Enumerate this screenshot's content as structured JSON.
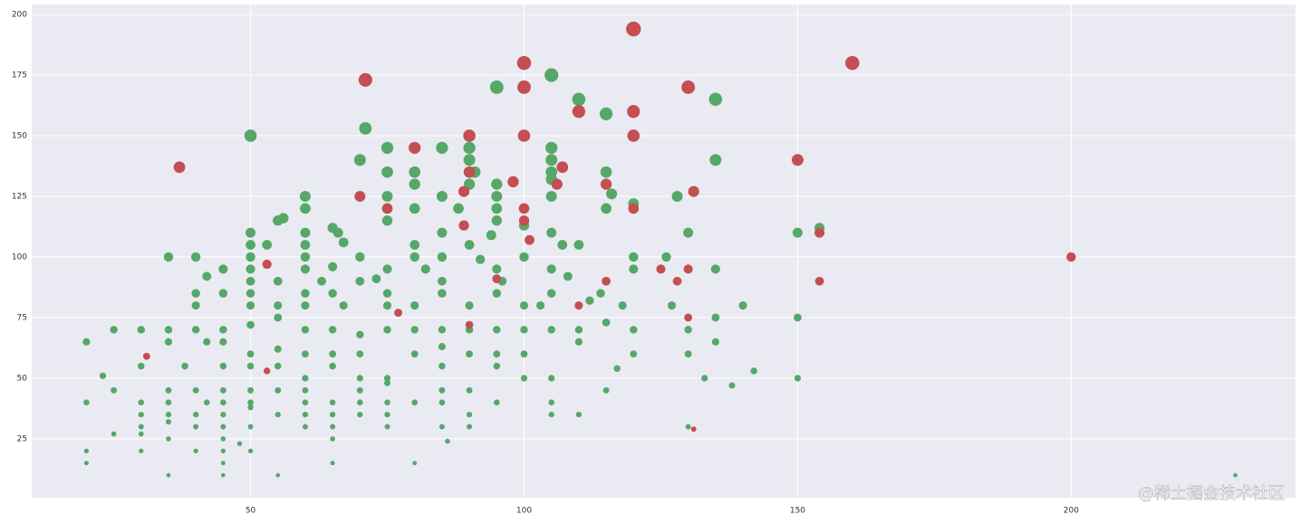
{
  "chart_data": {
    "type": "scatter",
    "grid": true,
    "xlim": [
      10,
      241
    ],
    "ylim": [
      0.7,
      204.1
    ],
    "xticks": [
      50,
      100,
      150,
      200
    ],
    "yticks": [
      25,
      50,
      75,
      100,
      125,
      150,
      175,
      200
    ],
    "watermark": "@稀土掘金技术社区",
    "series": [
      {
        "color": "#55a868",
        "x": [
          50,
          71,
          95,
          105,
          110,
          115,
          135,
          75,
          85,
          90,
          105,
          70,
          90,
          105,
          135,
          75,
          80,
          91,
          105,
          115,
          80,
          90,
          95,
          105,
          60,
          75,
          85,
          95,
          105,
          116,
          128,
          60,
          75,
          80,
          88,
          95,
          115,
          120,
          55,
          56,
          65,
          75,
          95,
          100,
          50,
          60,
          66,
          85,
          94,
          105,
          130,
          150,
          154,
          50,
          53,
          60,
          67,
          80,
          90,
          107,
          110,
          35,
          40,
          50,
          60,
          70,
          80,
          85,
          92,
          100,
          120,
          126,
          45,
          50,
          60,
          65,
          75,
          82,
          95,
          105,
          135,
          120,
          42,
          50,
          55,
          63,
          70,
          73,
          85,
          96,
          108,
          45,
          40,
          50,
          60,
          65,
          75,
          85,
          95,
          105,
          114,
          30,
          25,
          35,
          40,
          45,
          50,
          55,
          60,
          65,
          70,
          75,
          80,
          85,
          90,
          95,
          100,
          105,
          110,
          115,
          120,
          130,
          40,
          50,
          55,
          60,
          67,
          75,
          80,
          90,
          100,
          103,
          112,
          118,
          127,
          140,
          20,
          35,
          42,
          45,
          50,
          55,
          60,
          65,
          70,
          80,
          85,
          90,
          95,
          100,
          110,
          120,
          130,
          135,
          150,
          135,
          23,
          30,
          38,
          45,
          50,
          55,
          60,
          65,
          70,
          75,
          85,
          95,
          100,
          105,
          117,
          142,
          133,
          150,
          25,
          35,
          40,
          45,
          50,
          55,
          60,
          70,
          75,
          85,
          90,
          115,
          138,
          20,
          30,
          35,
          42,
          45,
          50,
          60,
          65,
          70,
          75,
          80,
          85,
          95,
          105,
          30,
          35,
          40,
          45,
          50,
          55,
          60,
          65,
          70,
          75,
          90,
          105,
          110,
          30,
          35,
          40,
          45,
          50,
          60,
          65,
          75,
          85,
          90,
          130,
          25,
          30,
          35,
          45,
          48,
          65,
          86,
          20,
          30,
          40,
          45,
          50,
          20,
          45,
          65,
          80,
          35,
          45,
          55,
          230
        ],
        "y": [
          150,
          153,
          170,
          175,
          165,
          159,
          165,
          145,
          145,
          145,
          145,
          140,
          140,
          140,
          140,
          135,
          135,
          135,
          135,
          135,
          130,
          130,
          130,
          132,
          125,
          125,
          125,
          125,
          125,
          126,
          125,
          120,
          120,
          120,
          120,
          120,
          120,
          122,
          115,
          116,
          112,
          115,
          115,
          113,
          110,
          110,
          110,
          110,
          109,
          110,
          110,
          110,
          112,
          105,
          105,
          105,
          106,
          105,
          105,
          105,
          105,
          100,
          100,
          100,
          100,
          100,
          100,
          100,
          99,
          100,
          100,
          100,
          95,
          95,
          95,
          96,
          95,
          95,
          95,
          95,
          95,
          95,
          92,
          90,
          90,
          90,
          90,
          91,
          90,
          90,
          92,
          85,
          85,
          85,
          85,
          85,
          85,
          85,
          85,
          85,
          85,
          70,
          70,
          70,
          70,
          70,
          72,
          75,
          70,
          70,
          68,
          70,
          70,
          70,
          70,
          70,
          70,
          70,
          70,
          73,
          70,
          70,
          80,
          80,
          80,
          80,
          80,
          80,
          80,
          80,
          80,
          80,
          82,
          80,
          80,
          80,
          65,
          65,
          65,
          65,
          60,
          62,
          60,
          60,
          60,
          60,
          63,
          60,
          60,
          60,
          65,
          60,
          60,
          65,
          75,
          75,
          51,
          55,
          55,
          55,
          55,
          55,
          50,
          55,
          50,
          50,
          55,
          55,
          50,
          50,
          54,
          53,
          50,
          50,
          45,
          45,
          45,
          45,
          45,
          45,
          45,
          45,
          48,
          45,
          45,
          45,
          47,
          40,
          40,
          40,
          40,
          40,
          40,
          40,
          40,
          40,
          40,
          40,
          40,
          40,
          40,
          35,
          35,
          35,
          35,
          38,
          35,
          35,
          35,
          35,
          35,
          35,
          35,
          35,
          30,
          32,
          30,
          30,
          30,
          30,
          30,
          30,
          30,
          30,
          30,
          27,
          27,
          25,
          25,
          23,
          25,
          24,
          20,
          20,
          20,
          20,
          20,
          15,
          15,
          15,
          15,
          10,
          10,
          10,
          10
        ]
      },
      {
        "color": "#c44e52",
        "x": [
          37,
          71,
          100,
          100,
          120,
          160,
          130,
          110,
          120,
          90,
          100,
          120,
          80,
          150,
          107,
          90,
          98,
          106,
          115,
          70,
          89,
          131,
          75,
          100,
          120,
          89,
          100,
          101,
          154,
          200,
          53,
          125,
          130,
          128,
          95,
          115,
          154,
          77,
          110,
          130,
          90,
          31,
          53,
          131
        ],
        "y": [
          137,
          173,
          180,
          170,
          194,
          180,
          170,
          160,
          160,
          150,
          150,
          150,
          145,
          140,
          137,
          135,
          131,
          130,
          130,
          125,
          127,
          127,
          120,
          120,
          120,
          113,
          115,
          107,
          110,
          100,
          97,
          95,
          95,
          90,
          91,
          90,
          90,
          77,
          80,
          75,
          72,
          59,
          53,
          29
        ]
      }
    ]
  }
}
